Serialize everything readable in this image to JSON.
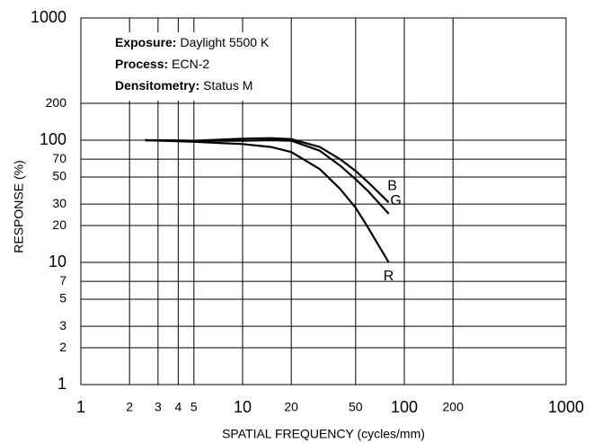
{
  "chart_data": {
    "type": "line",
    "xlabel": "SPATIAL FREQUENCY (cycles/mm)",
    "ylabel": "RESPONSE (%)",
    "annotations": [
      {
        "label": "Exposure:",
        "text": "Daylight 5500 K"
      },
      {
        "label": "Process:",
        "text": "ECN-2"
      },
      {
        "label": "Densitometry:",
        "text": "Status M"
      }
    ],
    "x": [
      2.5,
      5,
      10,
      15,
      20,
      30,
      40,
      50,
      60,
      80
    ],
    "series": [
      {
        "name": "B",
        "color": "#000000",
        "values": [
          100,
          99,
          103,
          104,
          102,
          88,
          70,
          56,
          45,
          31
        ]
      },
      {
        "name": "G",
        "color": "#000000",
        "values": [
          100,
          99,
          99,
          100,
          99,
          82,
          62,
          48,
          38,
          25
        ]
      },
      {
        "name": "R",
        "color": "#000000",
        "values": [
          100,
          97,
          93,
          88,
          80,
          58,
          40,
          28,
          19,
          10
        ]
      }
    ],
    "xlog": true,
    "ylog": true,
    "xlim": [
      1,
      1000
    ],
    "ylim": [
      1,
      1000
    ],
    "xticks": [
      1,
      2,
      3,
      4,
      5,
      10,
      20,
      50,
      100,
      200,
      1000
    ],
    "yticks": [
      1,
      2,
      3,
      5,
      7,
      10,
      20,
      30,
      50,
      70,
      100,
      200,
      1000
    ],
    "grid": true
  }
}
